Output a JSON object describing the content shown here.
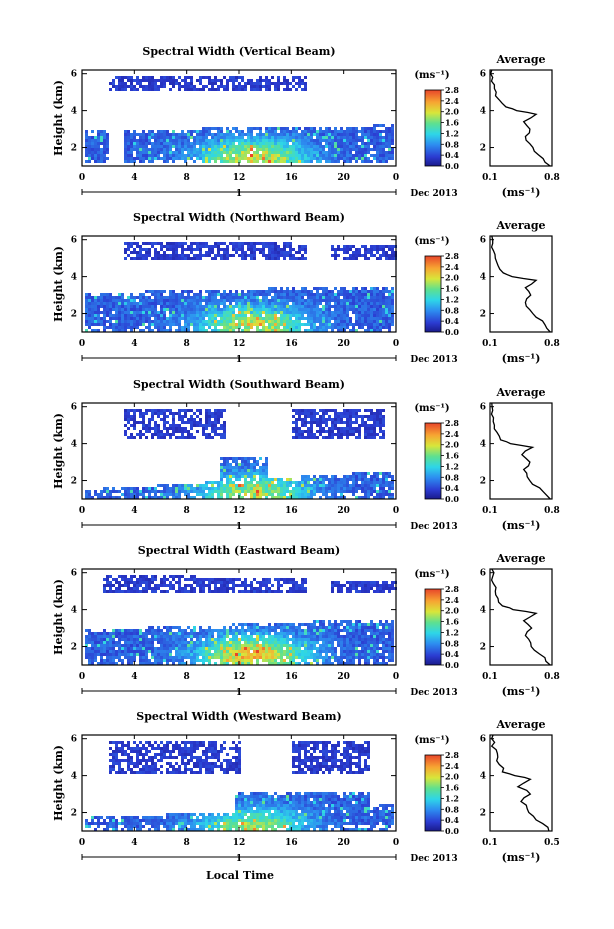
{
  "figure": {
    "xlabel": "Local Time",
    "unit_label": "(ms⁻¹)",
    "avg_title": "Average",
    "avg_unit": "(ms⁻¹)",
    "date_label": "Dec 2013",
    "day_label": "1"
  },
  "chart_data": [
    {
      "type": "heatmap",
      "title": "Spectral Width (Vertical Beam)",
      "xlabel": "",
      "ylabel": "Height (km)",
      "xlim": [
        0,
        24
      ],
      "ylim": [
        1,
        6.2
      ],
      "x_ticks": [
        "0",
        "4",
        "8",
        "12",
        "16",
        "20",
        "0"
      ],
      "y_ticks": [
        "2",
        "4",
        "6"
      ],
      "colorbar": {
        "range": [
          0,
          2.8
        ],
        "ticks": [
          "0.0",
          "0.4",
          "0.8",
          "1.2",
          "1.6",
          "2.0",
          "2.4",
          "2.8"
        ]
      },
      "echo_layers": [
        {
          "name": "low",
          "x": [
            0.2,
            23.8
          ],
          "base": 1.2,
          "top_start": 3.0,
          "top_end": 3.3,
          "gaps": [
            [
              2.0,
              3.0
            ]
          ]
        },
        {
          "name": "high",
          "x": [
            2.0,
            17.0
          ],
          "base": 5.2,
          "top_start": 6.0,
          "top_end": 6.0,
          "gaps": []
        }
      ],
      "peak": {
        "time": 13,
        "height": 1.5,
        "value": 1.6
      },
      "average_profile": {
        "xlim": [
          0.1,
          0.8
        ],
        "x_ticks": [
          "0.1",
          "0.8"
        ],
        "y_ticks": [
          "2",
          "4",
          "6"
        ],
        "heights": [
          1.0,
          1.4,
          1.8,
          2.2,
          2.6,
          3.0,
          3.4,
          3.8,
          4.0,
          4.2,
          4.6,
          5.0,
          5.4,
          5.8,
          6.2
        ],
        "values": [
          0.78,
          0.7,
          0.6,
          0.55,
          0.5,
          0.55,
          0.48,
          0.62,
          0.4,
          0.28,
          0.2,
          0.17,
          0.15,
          0.13,
          0.12
        ]
      }
    },
    {
      "type": "heatmap",
      "title": "Spectral Width (Northward Beam)",
      "xlabel": "",
      "ylabel": "Height (km)",
      "xlim": [
        0,
        24
      ],
      "ylim": [
        1,
        6.2
      ],
      "x_ticks": [
        "0",
        "4",
        "8",
        "12",
        "16",
        "20",
        "0"
      ],
      "y_ticks": [
        "2",
        "4",
        "6"
      ],
      "colorbar": {
        "range": [
          0,
          2.8
        ],
        "ticks": [
          "0.0",
          "0.4",
          "0.8",
          "1.2",
          "1.6",
          "2.0",
          "2.4",
          "2.8"
        ]
      },
      "echo_layers": [
        {
          "name": "low",
          "x": [
            0.2,
            23.8
          ],
          "base": 1.1,
          "top_start": 3.2,
          "top_end": 3.6,
          "gaps": []
        },
        {
          "name": "high",
          "x": [
            3.0,
            24.0
          ],
          "base": 5.0,
          "top_start": 6.0,
          "top_end": 5.8,
          "gaps": [
            [
              17.0,
              19.0
            ]
          ]
        }
      ],
      "peak": {
        "time": 13,
        "height": 1.4,
        "value": 1.5
      },
      "average_profile": {
        "xlim": [
          0.1,
          0.8
        ],
        "x_ticks": [
          "0.1",
          "0.8"
        ],
        "y_ticks": [
          "2",
          "4",
          "6"
        ],
        "heights": [
          1.0,
          1.4,
          1.8,
          2.2,
          2.6,
          3.0,
          3.4,
          3.8,
          4.0,
          4.2,
          4.6,
          5.0,
          5.4,
          5.8,
          6.2
        ],
        "values": [
          0.78,
          0.72,
          0.62,
          0.55,
          0.5,
          0.56,
          0.5,
          0.62,
          0.35,
          0.25,
          0.19,
          0.16,
          0.14,
          0.13,
          0.12
        ]
      }
    },
    {
      "type": "heatmap",
      "title": "Spectral Width (Southward Beam)",
      "xlabel": "",
      "ylabel": "Height (km)",
      "xlim": [
        0,
        24
      ],
      "ylim": [
        1,
        6.2
      ],
      "x_ticks": [
        "0",
        "4",
        "8",
        "12",
        "16",
        "20",
        "0"
      ],
      "y_ticks": [
        "2",
        "4",
        "6"
      ],
      "colorbar": {
        "range": [
          0,
          2.8
        ],
        "ticks": [
          "0.0",
          "0.4",
          "0.8",
          "1.2",
          "1.6",
          "2.0",
          "2.4",
          "2.8"
        ]
      },
      "echo_layers": [
        {
          "name": "low",
          "x": [
            0.2,
            23.8
          ],
          "base": 1.1,
          "top_start": 1.6,
          "top_end": 2.6,
          "gaps": []
        },
        {
          "name": "mid",
          "x": [
            10.5,
            14.0
          ],
          "base": 2.0,
          "top_start": 3.3,
          "top_end": 3.3,
          "gaps": []
        },
        {
          "name": "high",
          "x": [
            3.0,
            23.0
          ],
          "base": 4.4,
          "top_start": 6.0,
          "top_end": 6.0,
          "gaps": [
            [
              11.0,
              16.0
            ]
          ]
        }
      ],
      "peak": {
        "time": 13,
        "height": 1.4,
        "value": 1.4
      },
      "average_profile": {
        "xlim": [
          0.1,
          0.8
        ],
        "x_ticks": [
          "0.1",
          "0.8"
        ],
        "y_ticks": [
          "2",
          "4",
          "6"
        ],
        "heights": [
          1.0,
          1.4,
          1.8,
          2.2,
          2.6,
          3.0,
          3.4,
          3.8,
          4.0,
          4.2,
          4.6,
          5.0,
          5.4,
          5.8,
          6.2
        ],
        "values": [
          0.78,
          0.7,
          0.58,
          0.52,
          0.48,
          0.55,
          0.46,
          0.58,
          0.33,
          0.22,
          0.18,
          0.15,
          0.14,
          0.13,
          0.12
        ]
      }
    },
    {
      "type": "heatmap",
      "title": "Spectral Width (Eastward Beam)",
      "xlabel": "",
      "ylabel": "Height (km)",
      "xlim": [
        0,
        24
      ],
      "ylim": [
        1,
        6.2
      ],
      "x_ticks": [
        "0",
        "4",
        "8",
        "12",
        "16",
        "20",
        "0"
      ],
      "y_ticks": [
        "2",
        "4",
        "6"
      ],
      "colorbar": {
        "range": [
          0,
          2.8
        ],
        "ticks": [
          "0.0",
          "0.4",
          "0.8",
          "1.2",
          "1.6",
          "2.0",
          "2.4",
          "2.8"
        ]
      },
      "echo_layers": [
        {
          "name": "low",
          "x": [
            0.2,
            23.8
          ],
          "base": 1.1,
          "top_start": 3.0,
          "top_end": 3.6,
          "gaps": []
        },
        {
          "name": "high",
          "x": [
            1.5,
            24.0
          ],
          "base": 5.0,
          "top_start": 6.0,
          "top_end": 5.6,
          "gaps": [
            [
              17.0,
              19.0
            ]
          ]
        }
      ],
      "peak": {
        "time": 13,
        "height": 1.6,
        "value": 1.8
      },
      "average_profile": {
        "xlim": [
          0.1,
          0.8
        ],
        "x_ticks": [
          "0.1",
          "0.8"
        ],
        "y_ticks": [
          "2",
          "4",
          "6"
        ],
        "heights": [
          1.0,
          1.4,
          1.8,
          2.2,
          2.6,
          3.0,
          3.4,
          3.8,
          4.0,
          4.2,
          4.6,
          5.0,
          5.4,
          5.8,
          6.2
        ],
        "values": [
          0.78,
          0.72,
          0.6,
          0.56,
          0.5,
          0.57,
          0.48,
          0.62,
          0.36,
          0.24,
          0.19,
          0.16,
          0.14,
          0.13,
          0.12
        ]
      }
    },
    {
      "type": "heatmap",
      "title": "Spectral Width (Westward Beam)",
      "xlabel": "Local Time",
      "ylabel": "Height (km)",
      "xlim": [
        0,
        24
      ],
      "ylim": [
        1,
        6.2
      ],
      "x_ticks": [
        "0",
        "4",
        "8",
        "12",
        "16",
        "20",
        "0"
      ],
      "y_ticks": [
        "2",
        "4",
        "6"
      ],
      "colorbar": {
        "range": [
          0,
          2.8
        ],
        "ticks": [
          "0.0",
          "0.4",
          "0.8",
          "1.2",
          "1.6",
          "2.0",
          "2.4",
          "2.8"
        ]
      },
      "echo_layers": [
        {
          "name": "low",
          "x": [
            0.2,
            23.8
          ],
          "base": 1.1,
          "top_start": 1.8,
          "top_end": 2.5,
          "gaps": []
        },
        {
          "name": "mid",
          "x": [
            11.5,
            22.0
          ],
          "base": 2.0,
          "top_start": 3.2,
          "top_end": 3.2,
          "gaps": []
        },
        {
          "name": "high",
          "x": [
            2.0,
            22.0
          ],
          "base": 4.2,
          "top_start": 6.0,
          "top_end": 6.0,
          "gaps": [
            [
              12.0,
              16.0
            ]
          ]
        }
      ],
      "peak": {
        "time": 13,
        "height": 1.3,
        "value": 1.3
      },
      "average_profile": {
        "xlim": [
          0.1,
          0.5
        ],
        "x_ticks": [
          "0.1",
          "0.5"
        ],
        "y_ticks": [
          "2",
          "4",
          "6"
        ],
        "heights": [
          1.0,
          1.4,
          1.8,
          2.2,
          2.6,
          3.0,
          3.4,
          3.8,
          4.0,
          4.2,
          4.6,
          5.0,
          5.4,
          5.8,
          6.2
        ],
        "values": [
          0.48,
          0.44,
          0.38,
          0.34,
          0.3,
          0.36,
          0.28,
          0.36,
          0.26,
          0.18,
          0.16,
          0.15,
          0.14,
          0.13,
          0.12
        ]
      }
    }
  ]
}
